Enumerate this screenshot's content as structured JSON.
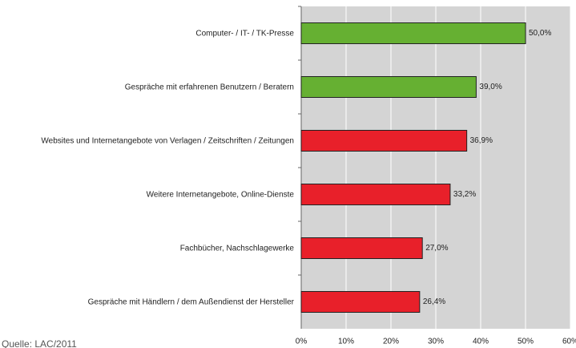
{
  "chart_data": {
    "type": "bar",
    "orientation": "horizontal",
    "categories": [
      "Computer- / IT- / TK-Presse",
      "Gespräche mit erfahrenen Benutzern / Beratern",
      "Websites und Internetangebote von Verlagen / Zeitschriften / Zeitungen",
      "Weitere Internetangebote, Online-Dienste",
      "Fachbücher, Nachschlagewerke",
      "Gespräche mit Händlern / dem Außendienst der Hersteller"
    ],
    "values": [
      50.0,
      39.0,
      36.9,
      33.2,
      27.0,
      26.4
    ],
    "value_labels": [
      "50,0%",
      "39,0%",
      "36,9%",
      "33,2%",
      "27,0%",
      "26,4%"
    ],
    "colors": [
      "#66b032",
      "#66b032",
      "#e8202a",
      "#e8202a",
      "#e8202a",
      "#e8202a"
    ],
    "xlim": [
      0,
      60
    ],
    "xticks": [
      {
        "value": 0,
        "label": "0%"
      },
      {
        "value": 10,
        "label": "10%"
      },
      {
        "value": 20,
        "label": "20%"
      },
      {
        "value": 30,
        "label": "30%"
      },
      {
        "value": 40,
        "label": "40%"
      },
      {
        "value": 50,
        "label": "50%"
      },
      {
        "value": 60,
        "label": "60%"
      }
    ],
    "grid": true,
    "source": "Quelle: LAC/2011"
  }
}
